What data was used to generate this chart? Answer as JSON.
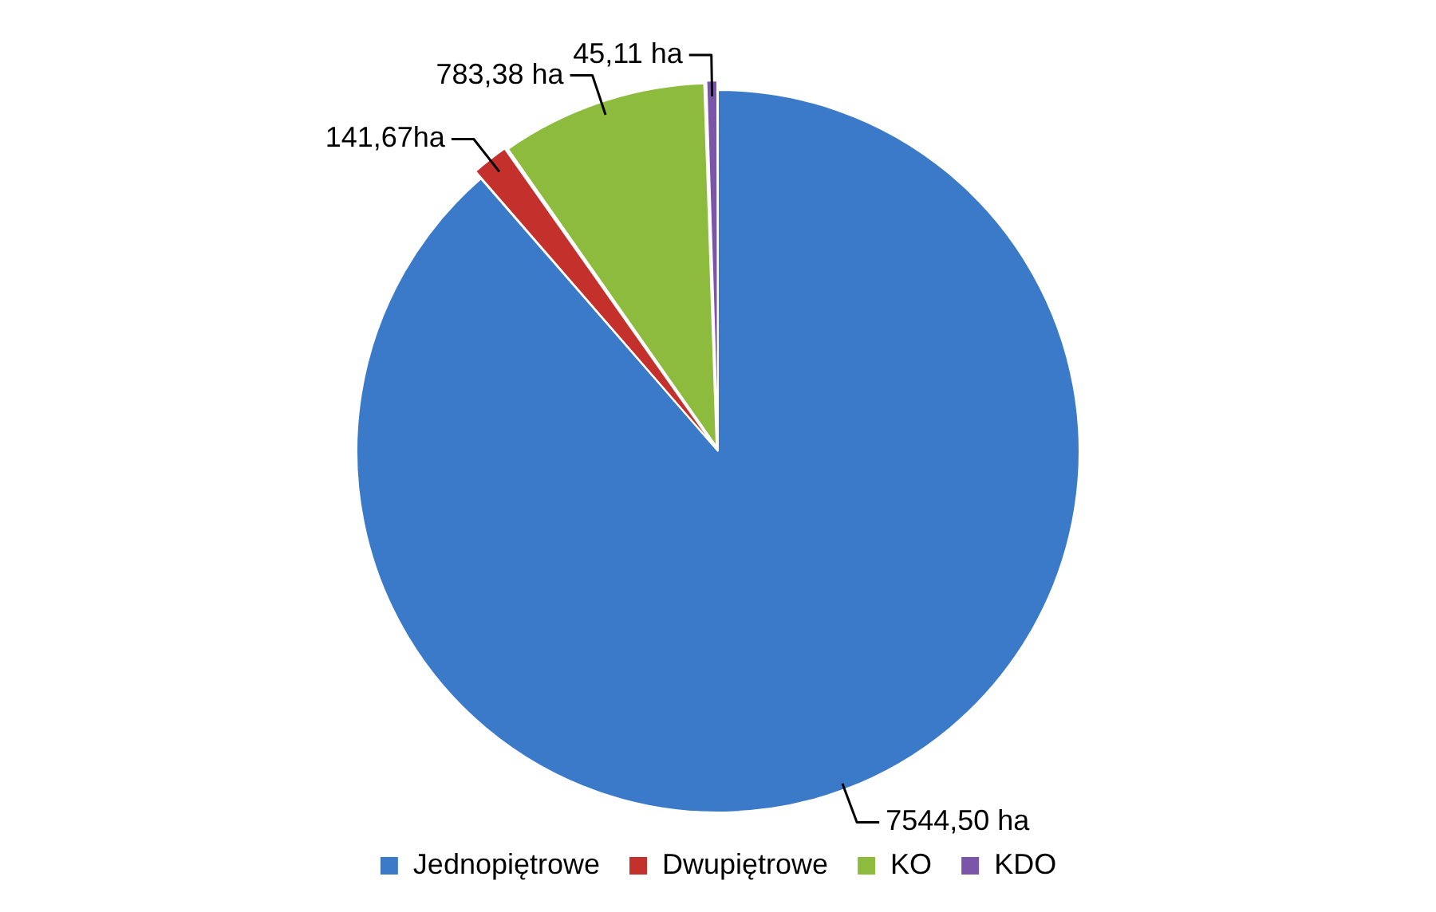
{
  "chart_data": {
    "type": "pie",
    "categories": [
      "Jednopiętrowe",
      "Dwupiętrowe",
      "KO",
      "KDO"
    ],
    "values": [
      7544.5,
      141.67,
      783.38,
      45.11
    ],
    "colors": [
      "#3b7ac9",
      "#c4302b",
      "#8dbb3d",
      "#7b55aa"
    ],
    "value_labels": [
      "7544,50 ha",
      "141,67ha",
      "783,38 ha",
      "45,11 ha"
    ],
    "legend": "bottom"
  }
}
